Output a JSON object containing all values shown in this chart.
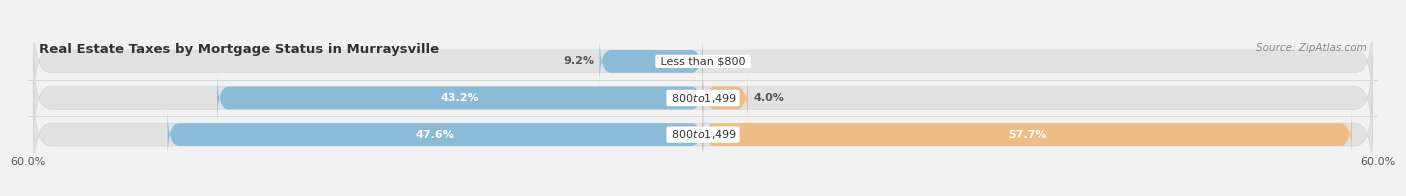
{
  "title": "Real Estate Taxes by Mortgage Status in Murraysville",
  "source": "Source: ZipAtlas.com",
  "bars": [
    {
      "label": "Less than $800",
      "without_mortgage": 9.2,
      "with_mortgage": 0.0
    },
    {
      "label": "$800 to $1,499",
      "without_mortgage": 43.2,
      "with_mortgage": 4.0
    },
    {
      "label": "$800 to $1,499",
      "without_mortgage": 47.6,
      "with_mortgage": 57.7
    }
  ],
  "x_min": -60.0,
  "x_max": 60.0,
  "color_without": "#8BBBD6",
  "color_with": "#F0BC85",
  "bg_color": "#F2F2F2",
  "bar_bg_color": "#E2E2E2",
  "bar_bg_border": "#D5D5D5",
  "title_fontsize": 9.5,
  "source_fontsize": 7.5,
  "label_fontsize": 8,
  "pct_fontsize": 8,
  "tick_fontsize": 8,
  "legend_fontsize": 8.5,
  "bar_height": 0.62,
  "inside_label_threshold": 12
}
